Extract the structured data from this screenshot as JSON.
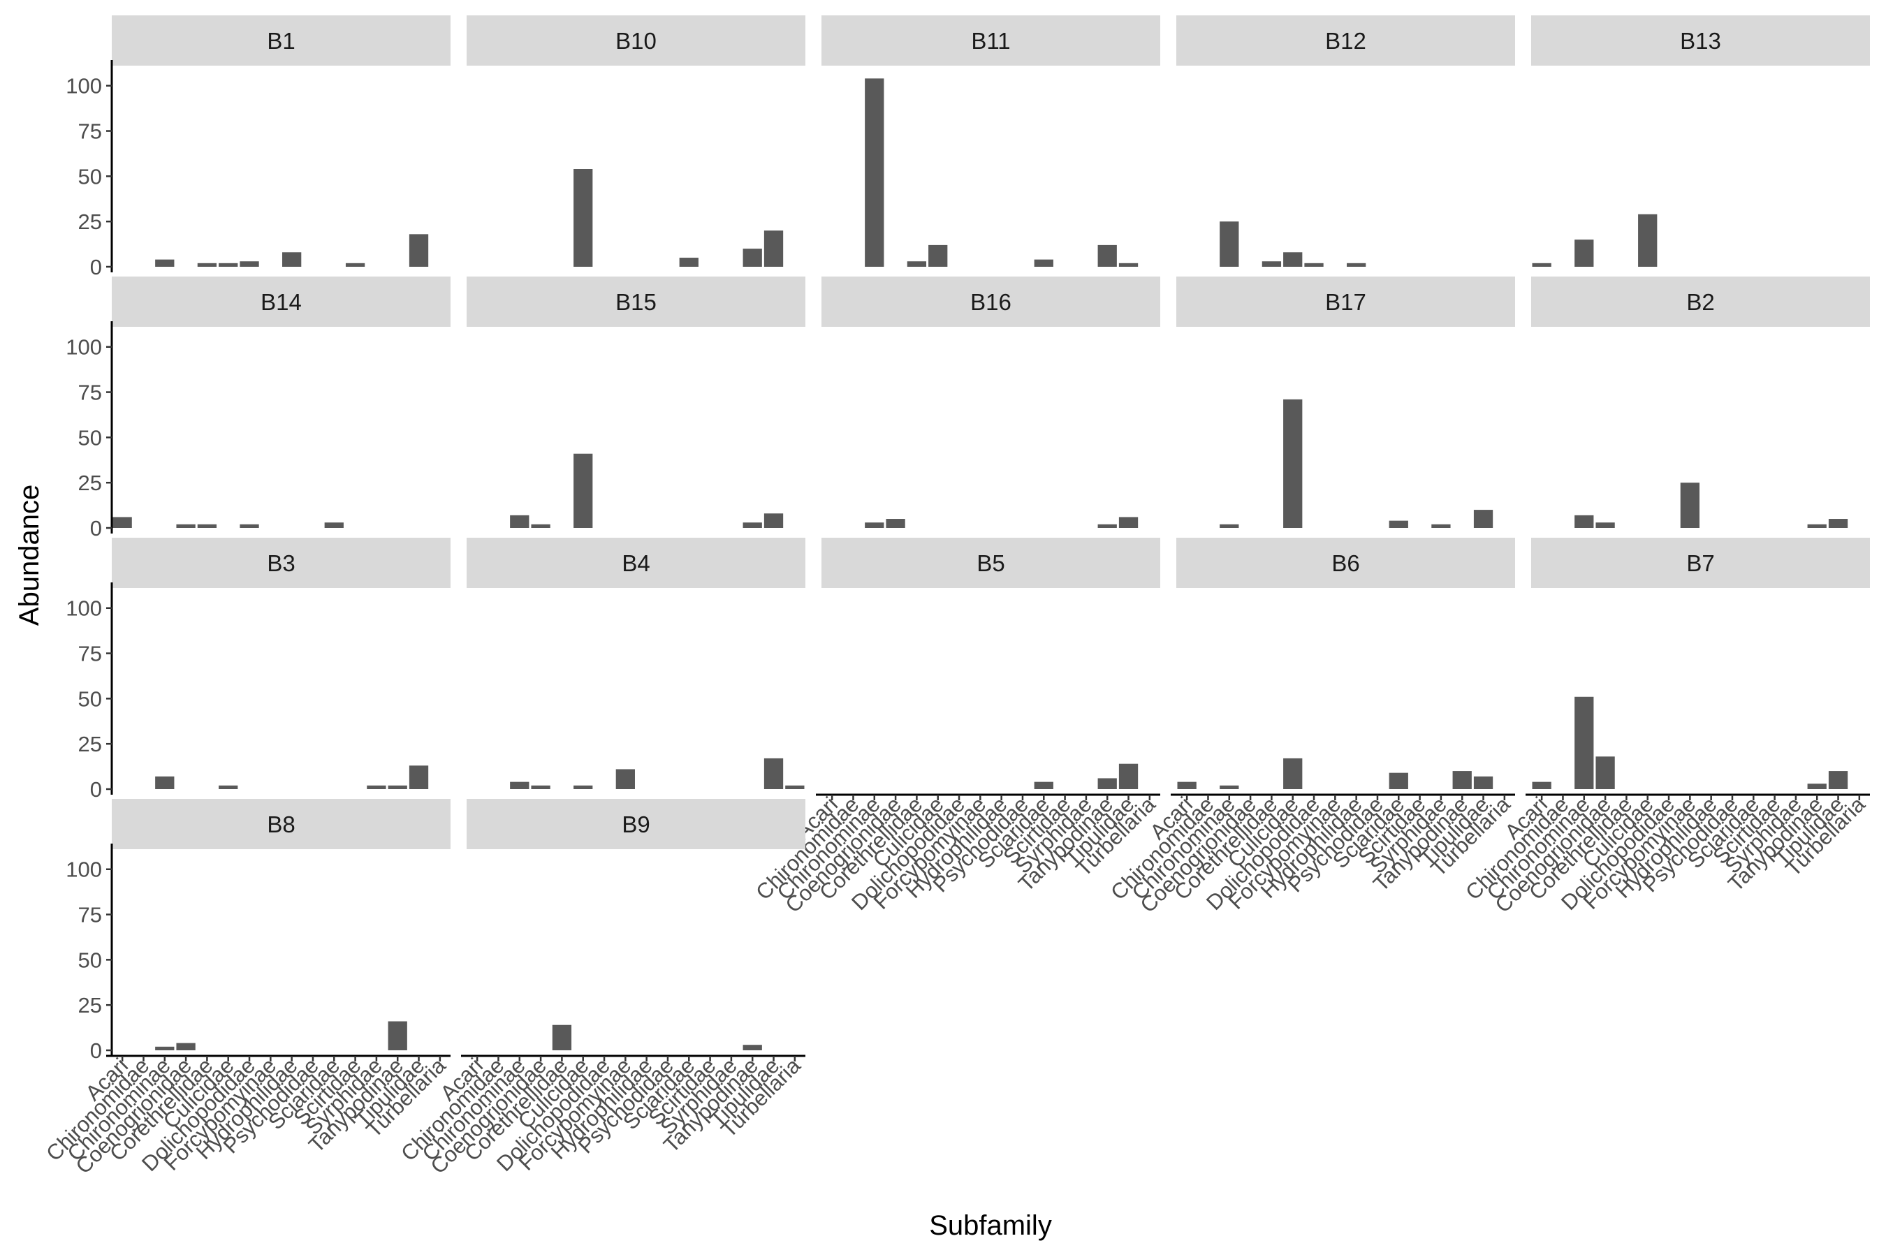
{
  "chart_data": {
    "type": "bar",
    "layout": "facet_wrap",
    "facet_columns": 5,
    "xlabel": "Subfamily",
    "ylabel": "Abundance",
    "ylim": [
      0,
      108
    ],
    "yticks": [
      0,
      25,
      50,
      75,
      100
    ],
    "grid": false,
    "bar_color": "#595959",
    "strip_color": "#d9d9d9",
    "categories": [
      "Acari",
      "Chironomidae",
      "Chironominae",
      "Coenogrionidae",
      "Corethrellidae",
      "Culicidae",
      "Dolichopodidae",
      "Forcypomyinae",
      "Hydrophilidae",
      "Psychodidae",
      "Sciaridae",
      "Scirtidae",
      "Syrphidae",
      "Tanypodinae",
      "Tipulidae",
      "Turbellaria"
    ],
    "panels": [
      {
        "name": "B1",
        "values": [
          0,
          0,
          4,
          0,
          2,
          2,
          3,
          0,
          8,
          0,
          0,
          2,
          0,
          0,
          18,
          0
        ]
      },
      {
        "name": "B10",
        "values": [
          0,
          0,
          0,
          0,
          0,
          54,
          0,
          0,
          0,
          0,
          5,
          0,
          0,
          10,
          20,
          0
        ]
      },
      {
        "name": "B11",
        "values": [
          0,
          0,
          104,
          0,
          3,
          12,
          0,
          0,
          0,
          0,
          4,
          0,
          0,
          12,
          2,
          0
        ]
      },
      {
        "name": "B12",
        "values": [
          0,
          0,
          25,
          0,
          3,
          8,
          2,
          0,
          2,
          0,
          0,
          0,
          0,
          0,
          0,
          0
        ]
      },
      {
        "name": "B13",
        "values": [
          2,
          0,
          15,
          0,
          0,
          29,
          0,
          0,
          0,
          0,
          0,
          0,
          0,
          0,
          0,
          0
        ]
      },
      {
        "name": "B14",
        "values": [
          6,
          0,
          0,
          2,
          2,
          0,
          2,
          0,
          0,
          0,
          3,
          0,
          0,
          0,
          0,
          0
        ]
      },
      {
        "name": "B15",
        "values": [
          0,
          0,
          7,
          2,
          0,
          41,
          0,
          0,
          0,
          0,
          0,
          0,
          0,
          3,
          8,
          0
        ]
      },
      {
        "name": "B16",
        "values": [
          0,
          0,
          3,
          5,
          0,
          0,
          0,
          0,
          0,
          0,
          0,
          0,
          0,
          2,
          6,
          0
        ]
      },
      {
        "name": "B17",
        "values": [
          0,
          0,
          2,
          0,
          0,
          71,
          0,
          0,
          0,
          0,
          4,
          0,
          2,
          0,
          10,
          0
        ]
      },
      {
        "name": "B2",
        "values": [
          0,
          0,
          7,
          3,
          0,
          0,
          0,
          25,
          0,
          0,
          0,
          0,
          0,
          2,
          5,
          0
        ]
      },
      {
        "name": "B3",
        "values": [
          0,
          0,
          7,
          0,
          0,
          2,
          0,
          0,
          0,
          0,
          0,
          0,
          2,
          2,
          13,
          0
        ]
      },
      {
        "name": "B4",
        "values": [
          0,
          0,
          4,
          2,
          0,
          2,
          0,
          11,
          0,
          0,
          0,
          0,
          0,
          0,
          17,
          2
        ]
      },
      {
        "name": "B5",
        "values": [
          0,
          0,
          0,
          0,
          0,
          0,
          0,
          0,
          0,
          0,
          4,
          0,
          0,
          6,
          14,
          0
        ]
      },
      {
        "name": "B6",
        "values": [
          4,
          0,
          2,
          0,
          0,
          17,
          0,
          0,
          0,
          0,
          9,
          0,
          0,
          10,
          7,
          0
        ]
      },
      {
        "name": "B7",
        "values": [
          4,
          0,
          51,
          18,
          0,
          0,
          0,
          0,
          0,
          0,
          0,
          0,
          0,
          3,
          10,
          0
        ]
      },
      {
        "name": "B8",
        "values": [
          0,
          0,
          2,
          4,
          0,
          0,
          0,
          0,
          0,
          0,
          0,
          0,
          0,
          16,
          0,
          0
        ]
      },
      {
        "name": "B9",
        "values": [
          0,
          0,
          0,
          0,
          14,
          0,
          0,
          0,
          0,
          0,
          0,
          0,
          0,
          3,
          0,
          0
        ]
      }
    ]
  }
}
